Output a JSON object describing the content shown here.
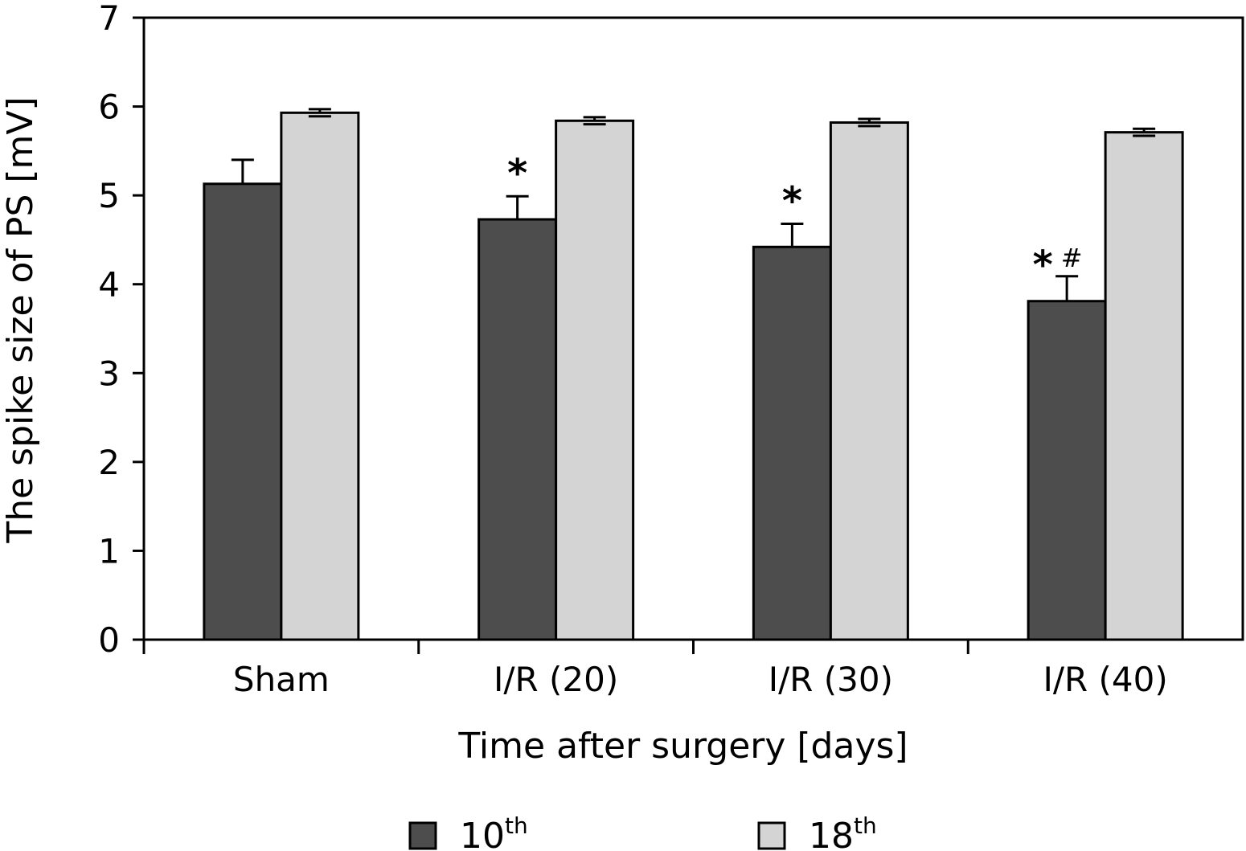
{
  "chart_data": {
    "type": "bar",
    "categories": [
      "Sham",
      "I/R (20)",
      "I/R (30)",
      "I/R (40)"
    ],
    "series": [
      {
        "name": "10",
        "name_sup": "th",
        "values": [
          5.13,
          4.73,
          4.42,
          3.81
        ],
        "errors": [
          0.27,
          0.26,
          0.26,
          0.28
        ],
        "color": "#4d4d4d",
        "annotations": [
          "",
          "*",
          "*",
          "*"
        ],
        "annotations2": [
          "",
          "",
          "",
          "#"
        ]
      },
      {
        "name": "18",
        "name_sup": "th",
        "values": [
          5.93,
          5.84,
          5.82,
          5.71
        ],
        "errors": [
          0.04,
          0.04,
          0.04,
          0.04
        ],
        "color": "#d4d4d4"
      }
    ],
    "xlabel": "Time after surgery [days]",
    "ylabel": "The spike size of PS [mV]",
    "ylim": [
      0,
      7
    ],
    "yticks": [
      "0",
      "1",
      "2",
      "3",
      "4",
      "5",
      "6",
      "7"
    ],
    "grid": false,
    "legend_position": "bottom"
  }
}
